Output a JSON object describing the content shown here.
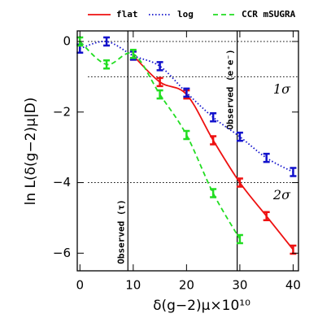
{
  "chart_data": {
    "type": "line",
    "xlabel": "δ(g−2)μ×10¹⁰",
    "ylabel": "ln L(δ(g−2)μ|D)",
    "xlim": [
      -0.5,
      41
    ],
    "ylim": [
      -6.5,
      0.3
    ],
    "xticks": [
      0,
      10,
      20,
      30,
      40
    ],
    "yticks": [
      0,
      -2,
      -4,
      -6
    ],
    "series": [
      {
        "name": "flat",
        "color": "#ee1111",
        "style": "solid",
        "x": [
          10,
          15,
          20,
          25,
          30,
          35,
          40
        ],
        "values": [
          -0.4,
          -1.15,
          -1.5,
          -2.8,
          -4.0,
          -4.95,
          -5.9
        ]
      },
      {
        "name": "log",
        "color": "#1111cc",
        "style": "dotted",
        "x": [
          0,
          5,
          10,
          15,
          20,
          25,
          30,
          35,
          40
        ],
        "values": [
          -0.2,
          0,
          -0.4,
          -0.7,
          -1.45,
          -2.15,
          -2.7,
          -3.3,
          -3.7
        ]
      },
      {
        "name": "CCR mSUGRA",
        "color": "#22dd22",
        "style": "dashed",
        "x": [
          0,
          5,
          10,
          15,
          20,
          25,
          30
        ],
        "values": [
          0,
          -0.65,
          -0.35,
          -1.5,
          -2.65,
          -4.3,
          -5.6
        ]
      }
    ],
    "hlines": [
      {
        "value": 0
      },
      {
        "value": -1,
        "label": "1σ"
      },
      {
        "value": -4,
        "label": "2σ"
      }
    ],
    "vlines": [
      {
        "value": 9,
        "label": "Observed (τ)"
      },
      {
        "value": 29.5,
        "label": "Observed (e⁺e⁻)"
      }
    ]
  }
}
